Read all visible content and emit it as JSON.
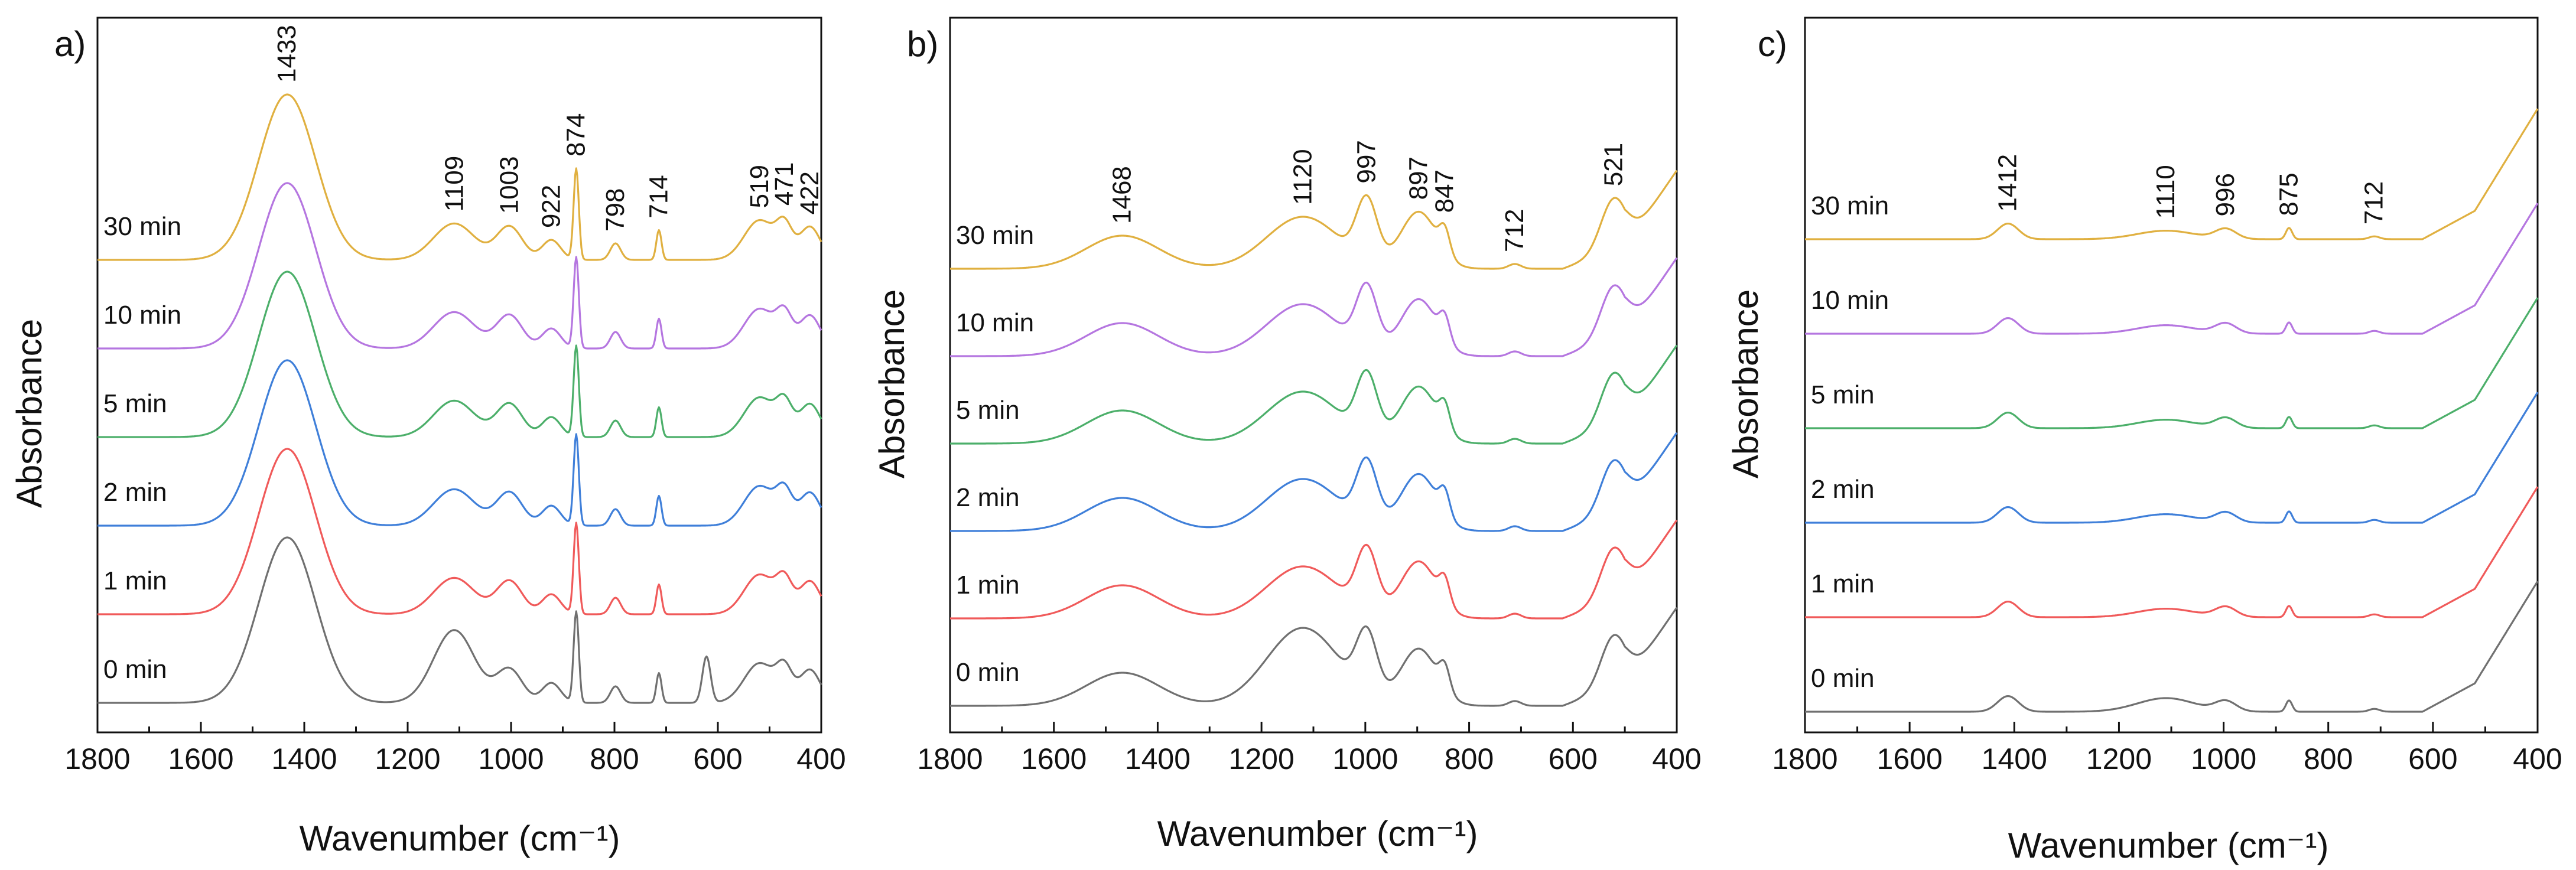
{
  "figure": {
    "panels": [
      {
        "tag": "a)",
        "ylabel": "Absorbance",
        "xlabel": "Wavenumber (cm⁻¹)"
      },
      {
        "tag": "b)",
        "ylabel": "Absorbance",
        "xlabel": "Wavenumber (cm⁻¹)"
      },
      {
        "tag": "c)",
        "ylabel": "Absorbance",
        "xlabel": "Wavenumber (cm⁻¹)"
      }
    ]
  },
  "chart_data": [
    {
      "type": "line",
      "panel": "a)",
      "xlabel": "Wavenumber (cm⁻¹)",
      "ylabel": "Absorbance",
      "xlim": [
        1800,
        400
      ],
      "xticks": [
        1800,
        1600,
        1400,
        1200,
        1000,
        800,
        600,
        400
      ],
      "series": [
        {
          "name": "0 min",
          "color": "#707070",
          "offset": 0.0
        },
        {
          "name": "1 min",
          "color": "#f05a5a",
          "offset": 1.0
        },
        {
          "name": "2 min",
          "color": "#3f7fd9",
          "offset": 2.0
        },
        {
          "name": "5 min",
          "color": "#4caf6a",
          "offset": 3.0
        },
        {
          "name": "10 min",
          "color": "#b576e0",
          "offset": 4.0
        },
        {
          "name": "30 min",
          "color": "#e0b040",
          "offset": 5.0
        }
      ],
      "series_labels": [
        "30 min",
        "10 min",
        "5 min",
        "2 min",
        "1 min",
        "0 min"
      ],
      "annotations": [
        {
          "text": "1433",
          "x": 1433
        },
        {
          "text": "1109",
          "x": 1109
        },
        {
          "text": "1003",
          "x": 1003
        },
        {
          "text": "922",
          "x": 922
        },
        {
          "text": "874",
          "x": 874
        },
        {
          "text": "798",
          "x": 798
        },
        {
          "text": "714",
          "x": 714
        },
        {
          "text": "519",
          "x": 519
        },
        {
          "text": "471",
          "x": 471
        },
        {
          "text": "422",
          "x": 422
        }
      ]
    },
    {
      "type": "line",
      "panel": "b)",
      "xlabel": "Wavenumber (cm⁻¹)",
      "ylabel": "Absorbance",
      "xlim": [
        1800,
        400
      ],
      "xticks": [
        1800,
        1600,
        1400,
        1200,
        1000,
        800,
        600,
        400
      ],
      "series": [
        {
          "name": "0 min",
          "color": "#707070",
          "offset": 0.0
        },
        {
          "name": "1 min",
          "color": "#f05a5a",
          "offset": 1.0
        },
        {
          "name": "2 min",
          "color": "#3f7fd9",
          "offset": 2.0
        },
        {
          "name": "5 min",
          "color": "#4caf6a",
          "offset": 3.0
        },
        {
          "name": "10 min",
          "color": "#b576e0",
          "offset": 4.0
        },
        {
          "name": "30 min",
          "color": "#e0b040",
          "offset": 5.0
        }
      ],
      "series_labels": [
        "30 min",
        "10 min",
        "5 min",
        "2 min",
        "1 min",
        "0 min"
      ],
      "annotations": [
        {
          "text": "1468",
          "x": 1468
        },
        {
          "text": "1120",
          "x": 1120
        },
        {
          "text": "997",
          "x": 997
        },
        {
          "text": "897",
          "x": 897
        },
        {
          "text": "847",
          "x": 847
        },
        {
          "text": "712",
          "x": 712
        },
        {
          "text": "521",
          "x": 521
        }
      ]
    },
    {
      "type": "line",
      "panel": "c)",
      "xlabel": "Wavenumber (cm⁻¹)",
      "ylabel": "Absorbance",
      "xlim": [
        1800,
        400
      ],
      "xticks": [
        1800,
        1600,
        1400,
        1200,
        1000,
        800,
        600,
        400
      ],
      "series": [
        {
          "name": "0 min",
          "color": "#707070",
          "offset": 0.0
        },
        {
          "name": "1 min",
          "color": "#f05a5a",
          "offset": 1.0
        },
        {
          "name": "2 min",
          "color": "#3f7fd9",
          "offset": 2.0
        },
        {
          "name": "5 min",
          "color": "#4caf6a",
          "offset": 3.0
        },
        {
          "name": "10 min",
          "color": "#b576e0",
          "offset": 4.0
        },
        {
          "name": "30 min",
          "color": "#e0b040",
          "offset": 5.0
        }
      ],
      "series_labels": [
        "30 min",
        "10 min",
        "5 min",
        "2 min",
        "1 min",
        "0 min"
      ],
      "annotations": [
        {
          "text": "1412",
          "x": 1412
        },
        {
          "text": "1110",
          "x": 1110
        },
        {
          "text": "996",
          "x": 996
        },
        {
          "text": "875",
          "x": 875
        },
        {
          "text": "712",
          "x": 712
        }
      ]
    }
  ]
}
